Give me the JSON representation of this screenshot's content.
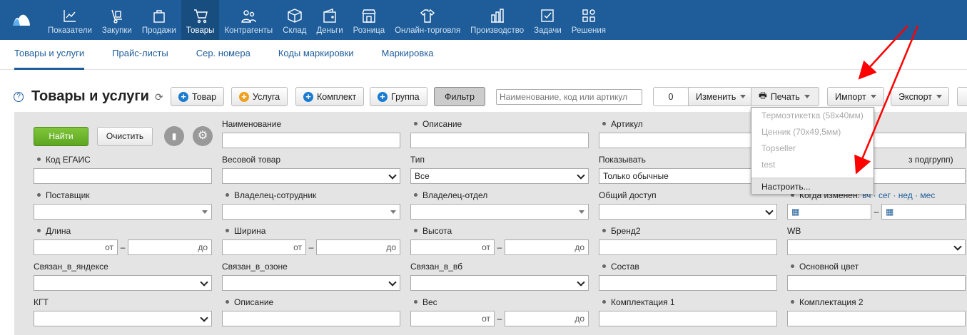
{
  "nav": [
    {
      "label": "Показатели",
      "icon": "chart-line-icon"
    },
    {
      "label": "Закупки",
      "icon": "hand-truck-icon"
    },
    {
      "label": "Продажи",
      "icon": "shopping-bag-icon"
    },
    {
      "label": "Товары",
      "icon": "cart-icon",
      "active": true
    },
    {
      "label": "Контрагенты",
      "icon": "people-icon"
    },
    {
      "label": "Склад",
      "icon": "box-icon"
    },
    {
      "label": "Деньги",
      "icon": "wallet-icon"
    },
    {
      "label": "Розница",
      "icon": "store-icon"
    },
    {
      "label": "Онлайн-торговля",
      "icon": "shirt-icon"
    },
    {
      "label": "Производство",
      "icon": "factory-icon"
    },
    {
      "label": "Задачи",
      "icon": "checkbox-icon"
    },
    {
      "label": "Решения",
      "icon": "apps-icon"
    }
  ],
  "subnav": [
    "Товары и услуги",
    "Прайс-листы",
    "Сер. номера",
    "Коды маркировки",
    "Маркировка"
  ],
  "page": {
    "title": "Товары и услуги",
    "help": "?"
  },
  "toolbar": {
    "product": "Товар",
    "service": "Услуга",
    "kit": "Комплект",
    "group": "Группа",
    "filter": "Фильтр",
    "search_placeholder": "Наименование, код или артикул",
    "count": "0",
    "edit": "Изменить",
    "print": "Печать",
    "import": "Импорт",
    "export": "Экспорт"
  },
  "print_menu": {
    "items": [
      "Термоэтикетка (58x40мм)",
      "Ценник (70x49,5мм)",
      "Topseller",
      "test"
    ],
    "configure": "Настроить..."
  },
  "filter": {
    "find": "Найти",
    "clear": "Очистить",
    "from": "от",
    "to": "до",
    "dash": "–",
    "name": "Наименование",
    "desc": "Описание",
    "article": "Артикул",
    "egais": "Код ЕГАИС",
    "weight_goods": "Весовой товар",
    "type": "Тип",
    "type_value": "Все",
    "show": "Показывать",
    "show_value": "Только обычные",
    "subgroups": "з подгрупп)",
    "supplier": "Поставщик",
    "owner_emp": "Владелец-сотрудник",
    "owner_dept": "Владелец-отдел",
    "shared": "Общий доступ",
    "changed": "Когда изменен:",
    "periods": "вч · сег · нед · мес",
    "length": "Длина",
    "width": "Ширина",
    "height": "Высота",
    "brand2": "Бренд2",
    "wb": "WB",
    "yandex": "Связан_в_яндексе",
    "ozon": "Связан_в_озоне",
    "vb": "Связан_в_вб",
    "composition": "Состав",
    "color": "Основной цвет",
    "kgt": "КГТ",
    "desc2": "Описание",
    "weight": "Вес",
    "kit1": "Комплектация 1",
    "kit2": "Комплектация 2"
  },
  "colors": {
    "header": "#1e5d9a",
    "accent_green": "#6cb52a",
    "annotation_arrow": "#ff0000"
  }
}
